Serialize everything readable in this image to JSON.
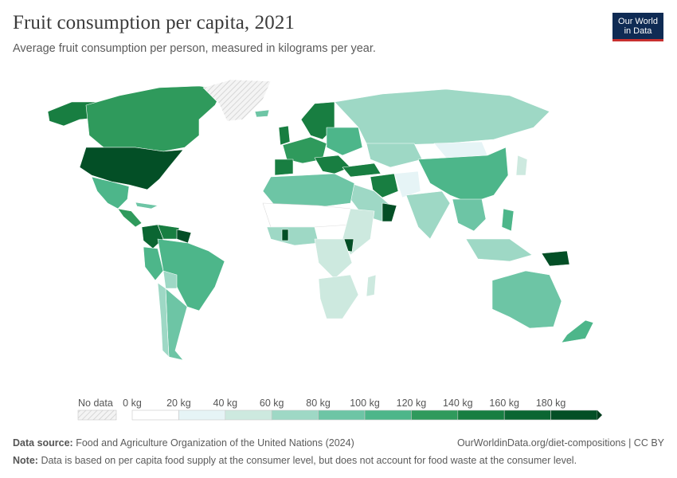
{
  "header": {
    "title": "Fruit consumption per capita, 2021",
    "subtitle": "Average fruit consumption per person, measured in kilograms per year."
  },
  "logo": {
    "line1": "Our World",
    "line2": "in Data",
    "bg_color": "#0f2b54",
    "accent_color": "#c8302f"
  },
  "legend": {
    "no_data_label": "No data",
    "bins": [
      {
        "label": "0 kg",
        "color": "#ffffff"
      },
      {
        "label": "20 kg",
        "color": "#e6f4f6"
      },
      {
        "label": "40 kg",
        "color": "#cde9df"
      },
      {
        "label": "60 kg",
        "color": "#9ed8c5"
      },
      {
        "label": "80 kg",
        "color": "#6dc5a5"
      },
      {
        "label": "100 kg",
        "color": "#4db68a"
      },
      {
        "label": "120 kg",
        "color": "#2f9a5c"
      },
      {
        "label": "140 kg",
        "color": "#187e41"
      },
      {
        "label": "160 kg",
        "color": "#0b6632"
      },
      {
        "label": "180 kg",
        "color": "#034f26"
      }
    ],
    "arrow_color": "#023d1d"
  },
  "footer": {
    "source_label": "Data source:",
    "source_text": "Food and Agriculture Organization of the United Nations (2024)",
    "right_text": "OurWorldinData.org/diet-compositions | CC BY",
    "note_label": "Note:",
    "note_text": "Data is based on per capita food supply at the consumer level, but does not account for food waste at the consumer level."
  }
}
